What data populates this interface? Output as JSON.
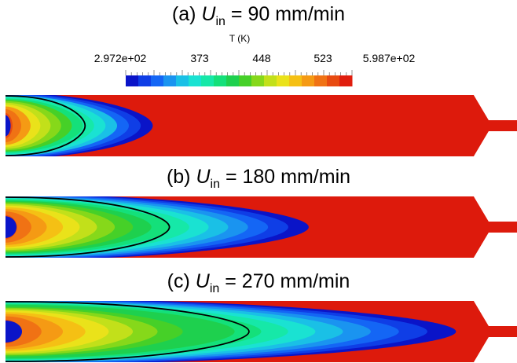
{
  "panels": [
    {
      "label": "(a)",
      "symbol": "U",
      "subscript": "in",
      "value": "90 mm/min"
    },
    {
      "label": "(b)",
      "symbol": "U",
      "subscript": "in",
      "value": "180 mm/min"
    },
    {
      "label": "(c)",
      "symbol": "U",
      "subscript": "in",
      "value": "270 mm/min"
    }
  ],
  "colorbar": {
    "title": "T (K)",
    "ticks": [
      "2.972e+02",
      "373",
      "448",
      "523",
      "5.987e+02"
    ],
    "colors": [
      "#0a14c8",
      "#0f3ee6",
      "#1466f5",
      "#1a94f0",
      "#1ac0e6",
      "#1ae2d2",
      "#16e8a8",
      "#14e07a",
      "#1ed04e",
      "#46d028",
      "#86d81a",
      "#c2e01a",
      "#eae21a",
      "#f5c014",
      "#f59a14",
      "#f07214",
      "#e84a10",
      "#e01e0e"
    ],
    "hot_color": "#dd1a0c"
  },
  "fields": [
    {
      "cold_extent": 0.17,
      "n_levels": 14
    },
    {
      "cold_extent": 0.35,
      "n_levels": 17
    },
    {
      "cold_extent": 0.52,
      "n_levels": 18
    }
  ]
}
